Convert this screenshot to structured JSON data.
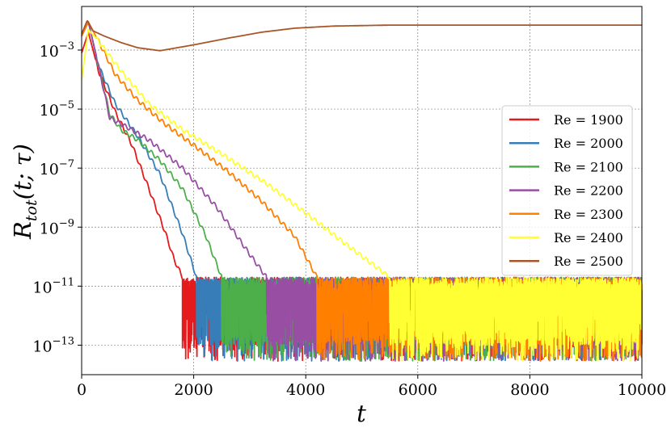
{
  "chart_data": {
    "type": "line",
    "title": "",
    "xlabel": "t",
    "ylabel": "R_tot(t; τ)",
    "ylabel_parts": {
      "base": "R",
      "sub": "tot",
      "args": "(t; τ)"
    },
    "xscale": "linear",
    "yscale": "log",
    "xlim": [
      0,
      10000
    ],
    "ylim": [
      1e-14,
      0.03
    ],
    "grid": true,
    "legend_position": "right",
    "x_ticks": [
      {
        "value": 0,
        "label": "0"
      },
      {
        "value": 2000,
        "label": "2000"
      },
      {
        "value": 4000,
        "label": "4000"
      },
      {
        "value": 6000,
        "label": "6000"
      },
      {
        "value": 8000,
        "label": "8000"
      },
      {
        "value": 10000,
        "label": "10000"
      }
    ],
    "y_ticks": [
      {
        "value": 1e-13,
        "mantissa": "10",
        "exponent": "−13"
      },
      {
        "value": 1e-11,
        "mantissa": "10",
        "exponent": "−11"
      },
      {
        "value": 1e-09,
        "mantissa": "10",
        "exponent": "−9"
      },
      {
        "value": 1e-07,
        "mantissa": "10",
        "exponent": "−7"
      },
      {
        "value": 1e-05,
        "mantissa": "10",
        "exponent": "−5"
      },
      {
        "value": 0.001,
        "mantissa": "10",
        "exponent": "−3"
      }
    ],
    "noise_band": {
      "upper": 2e-11,
      "lower": 1e-13
    },
    "series": [
      {
        "name": "Re = 1900",
        "color": "#e41a1c",
        "x": [
          0,
          120,
          300,
          600,
          900,
          1200,
          1500,
          1650,
          1800
        ],
        "y": [
          0.0008,
          0.004,
          0.0002,
          8e-06,
          6e-07,
          2e-08,
          6e-10,
          8e-11,
          2e-11
        ]
      },
      {
        "name": "Re = 2000",
        "color": "#377eb8",
        "x": [
          0,
          120,
          300,
          600,
          1000,
          1400,
          1800,
          2050
        ],
        "y": [
          0.003,
          0.009,
          0.0003,
          1.5e-05,
          1.2e-06,
          6e-08,
          6e-10,
          2e-11
        ]
      },
      {
        "name": "Re = 2100",
        "color": "#4daf4a",
        "x": [
          0,
          120,
          300,
          500,
          700,
          1000,
          1400,
          1800,
          2200,
          2500
        ],
        "y": [
          0.003,
          0.009,
          0.0003,
          7e-06,
          2e-06,
          9e-07,
          1.8e-07,
          2e-08,
          6e-10,
          2e-11
        ]
      },
      {
        "name": "Re = 2200",
        "color": "#984ea3",
        "x": [
          0,
          120,
          300,
          500,
          800,
          1200,
          1800,
          2400,
          3000,
          3300
        ],
        "y": [
          0.003,
          0.009,
          0.0003,
          5e-06,
          2.5e-06,
          9e-07,
          1e-07,
          5e-09,
          1.2e-10,
          2e-11
        ]
      },
      {
        "name": "Re = 2300",
        "color": "#ff7f00",
        "x": [
          0,
          120,
          300,
          600,
          1000,
          1500,
          2000,
          2600,
          3200,
          3800,
          4200
        ],
        "y": [
          0.003,
          0.009,
          0.002,
          0.00015,
          2e-05,
          3e-06,
          6e-07,
          8e-08,
          8e-09,
          5e-10,
          2e-11
        ]
      },
      {
        "name": "Re = 2400",
        "color": "#ffff33",
        "x": [
          0,
          120,
          300,
          700,
          1200,
          1800,
          2500,
          3300,
          4000,
          4800,
          5500
        ],
        "y": [
          0.0001,
          0.005,
          0.002,
          0.0002,
          1.5e-05,
          2e-06,
          3e-07,
          3e-08,
          3e-09,
          2e-10,
          2e-11
        ]
      },
      {
        "name": "Re = 2500",
        "color": "#a65628",
        "x": [
          0,
          100,
          200,
          400,
          700,
          1000,
          1400,
          2000,
          2600,
          3200,
          3800,
          4500,
          5500,
          7000,
          8500,
          10000
        ],
        "y": [
          0.0035,
          0.01,
          0.0045,
          0.003,
          0.0018,
          0.0012,
          0.00095,
          0.0015,
          0.0025,
          0.004,
          0.0055,
          0.0065,
          0.007,
          0.007,
          0.007,
          0.007
        ]
      }
    ]
  }
}
